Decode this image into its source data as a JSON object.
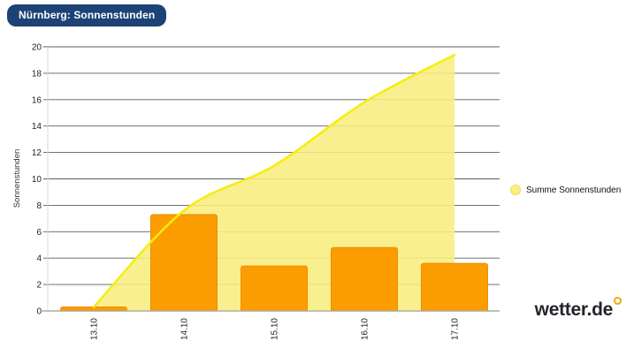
{
  "header": {
    "title_badge": "Nürnberg: Sonnenstunden"
  },
  "chart_data": {
    "type": "bar",
    "title": "Nürnberg: Sonnenstunden",
    "categories": [
      "13.10",
      "14.10",
      "15.10",
      "16.10",
      "17.10"
    ],
    "series": [
      {
        "name": "Sonnenstunden",
        "type": "bar",
        "values": [
          0.3,
          7.3,
          3.4,
          4.8,
          3.6
        ]
      },
      {
        "name": "Summe Sonnenstunden",
        "type": "area",
        "values": [
          0.3,
          7.6,
          11.0,
          15.8,
          19.4
        ]
      }
    ],
    "xlabel": "",
    "ylabel": "Sonnenstunden",
    "ylim": [
      0,
      20
    ],
    "yticks": [
      "0",
      "2",
      "4",
      "6",
      "8",
      "10",
      "12",
      "14",
      "16",
      "18",
      "20"
    ],
    "grid": true,
    "legend": {
      "label": "Summe Sonnenstunden",
      "position": "right"
    }
  },
  "branding": {
    "logo_text": "wetter.de"
  },
  "colors": {
    "badge_bg": "#1D4376",
    "badge_text": "#FFFFFF",
    "bar_fill": "#FB9D01",
    "bar_border": "#EF8C00",
    "area_fill": "#F9ED7E",
    "area_line": "#F4EE0B",
    "grid_line": "#5E5E5E",
    "axis_line": "#A6A6A6",
    "left_axis_line": "#D9D9D9",
    "tick_text": "#1F1F1F",
    "logo_text": "#23252B",
    "logo_sun": "#F2A702"
  }
}
